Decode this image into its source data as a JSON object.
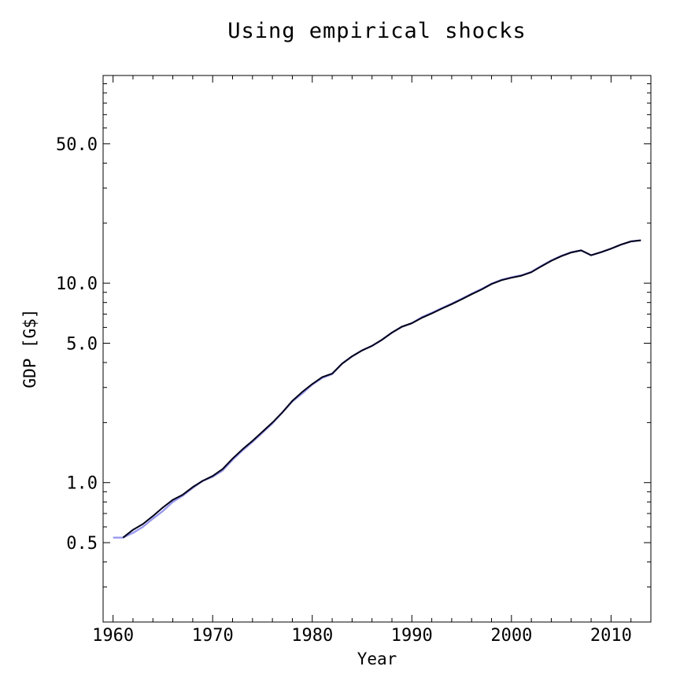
{
  "chart_data": {
    "type": "line",
    "title": "Using empirical shocks",
    "xlabel": "Year",
    "ylabel": "GDP [G$]",
    "yscale": "log",
    "xlim": [
      1959,
      2014
    ],
    "ylim": [
      0.2,
      110
    ],
    "xticks": [
      1960,
      1970,
      1980,
      1990,
      2000,
      2010
    ],
    "xtick_labels": [
      "1960",
      "1970",
      "1980",
      "1990",
      "2000",
      "2010"
    ],
    "yticks": [
      0.5,
      1.0,
      5.0,
      10.0,
      50.0
    ],
    "ytick_labels": [
      "0.5",
      "1.0",
      "5.0",
      "10.0",
      "50.0"
    ],
    "grid": false,
    "legend": "none",
    "series": [
      {
        "color": "#9999ee",
        "x": [
          1960,
          1961,
          1962,
          1963,
          1964,
          1965,
          1966,
          1967,
          1968,
          1969,
          1970,
          1971,
          1972,
          1973,
          1974,
          1975,
          1976,
          1977,
          1978,
          1979,
          1980,
          1981,
          1982,
          1983,
          1984,
          1985,
          1986,
          1987,
          1988,
          1989,
          1990,
          1991,
          1992,
          1993,
          1994,
          1995,
          1996,
          1997,
          1998,
          1999,
          2000,
          2001,
          2002,
          2003,
          2004,
          2005,
          2006,
          2007,
          2008,
          2009,
          2010,
          2011,
          2012,
          2013
        ],
        "values": [
          0.53,
          0.53,
          0.56,
          0.6,
          0.66,
          0.72,
          0.8,
          0.86,
          0.94,
          1.02,
          1.07,
          1.15,
          1.3,
          1.45,
          1.6,
          1.78,
          1.98,
          2.25,
          2.55,
          2.8,
          3.1,
          3.35,
          3.5,
          3.95,
          4.3,
          4.6,
          4.85,
          5.2,
          5.65,
          6.05,
          6.3,
          6.75,
          7.1,
          7.5,
          7.9,
          8.35,
          8.85,
          9.35,
          9.95,
          10.4,
          10.7,
          10.95,
          11.4,
          12.2,
          13.0,
          13.7,
          14.3,
          14.6,
          13.8,
          14.3,
          14.9,
          15.6,
          16.2,
          16.4
        ]
      },
      {
        "color": "#00001a",
        "x": [
          1961,
          1962,
          1963,
          1964,
          1965,
          1966,
          1967,
          1968,
          1969,
          1970,
          1971,
          1972,
          1973,
          1974,
          1975,
          1976,
          1977,
          1978,
          1979,
          1980,
          1981,
          1982,
          1983,
          1984,
          1985,
          1986,
          1987,
          1988,
          1989,
          1990,
          1991,
          1992,
          1993,
          1994,
          1995,
          1996,
          1997,
          1998,
          1999,
          2000,
          2001,
          2002,
          2003,
          2004,
          2005,
          2006,
          2007,
          2008,
          2009,
          2010,
          2011,
          2012,
          2013
        ],
        "values": [
          0.53,
          0.58,
          0.62,
          0.68,
          0.75,
          0.82,
          0.87,
          0.95,
          1.02,
          1.08,
          1.17,
          1.32,
          1.47,
          1.62,
          1.8,
          2.0,
          2.25,
          2.57,
          2.85,
          3.12,
          3.38,
          3.52,
          3.95,
          4.3,
          4.6,
          4.85,
          5.2,
          5.65,
          6.05,
          6.3,
          6.7,
          7.05,
          7.45,
          7.85,
          8.3,
          8.8,
          9.3,
          9.9,
          10.35,
          10.65,
          10.9,
          11.35,
          12.15,
          12.95,
          13.65,
          14.25,
          14.6,
          13.8,
          14.3,
          14.9,
          15.6,
          16.2,
          16.4
        ]
      }
    ]
  }
}
